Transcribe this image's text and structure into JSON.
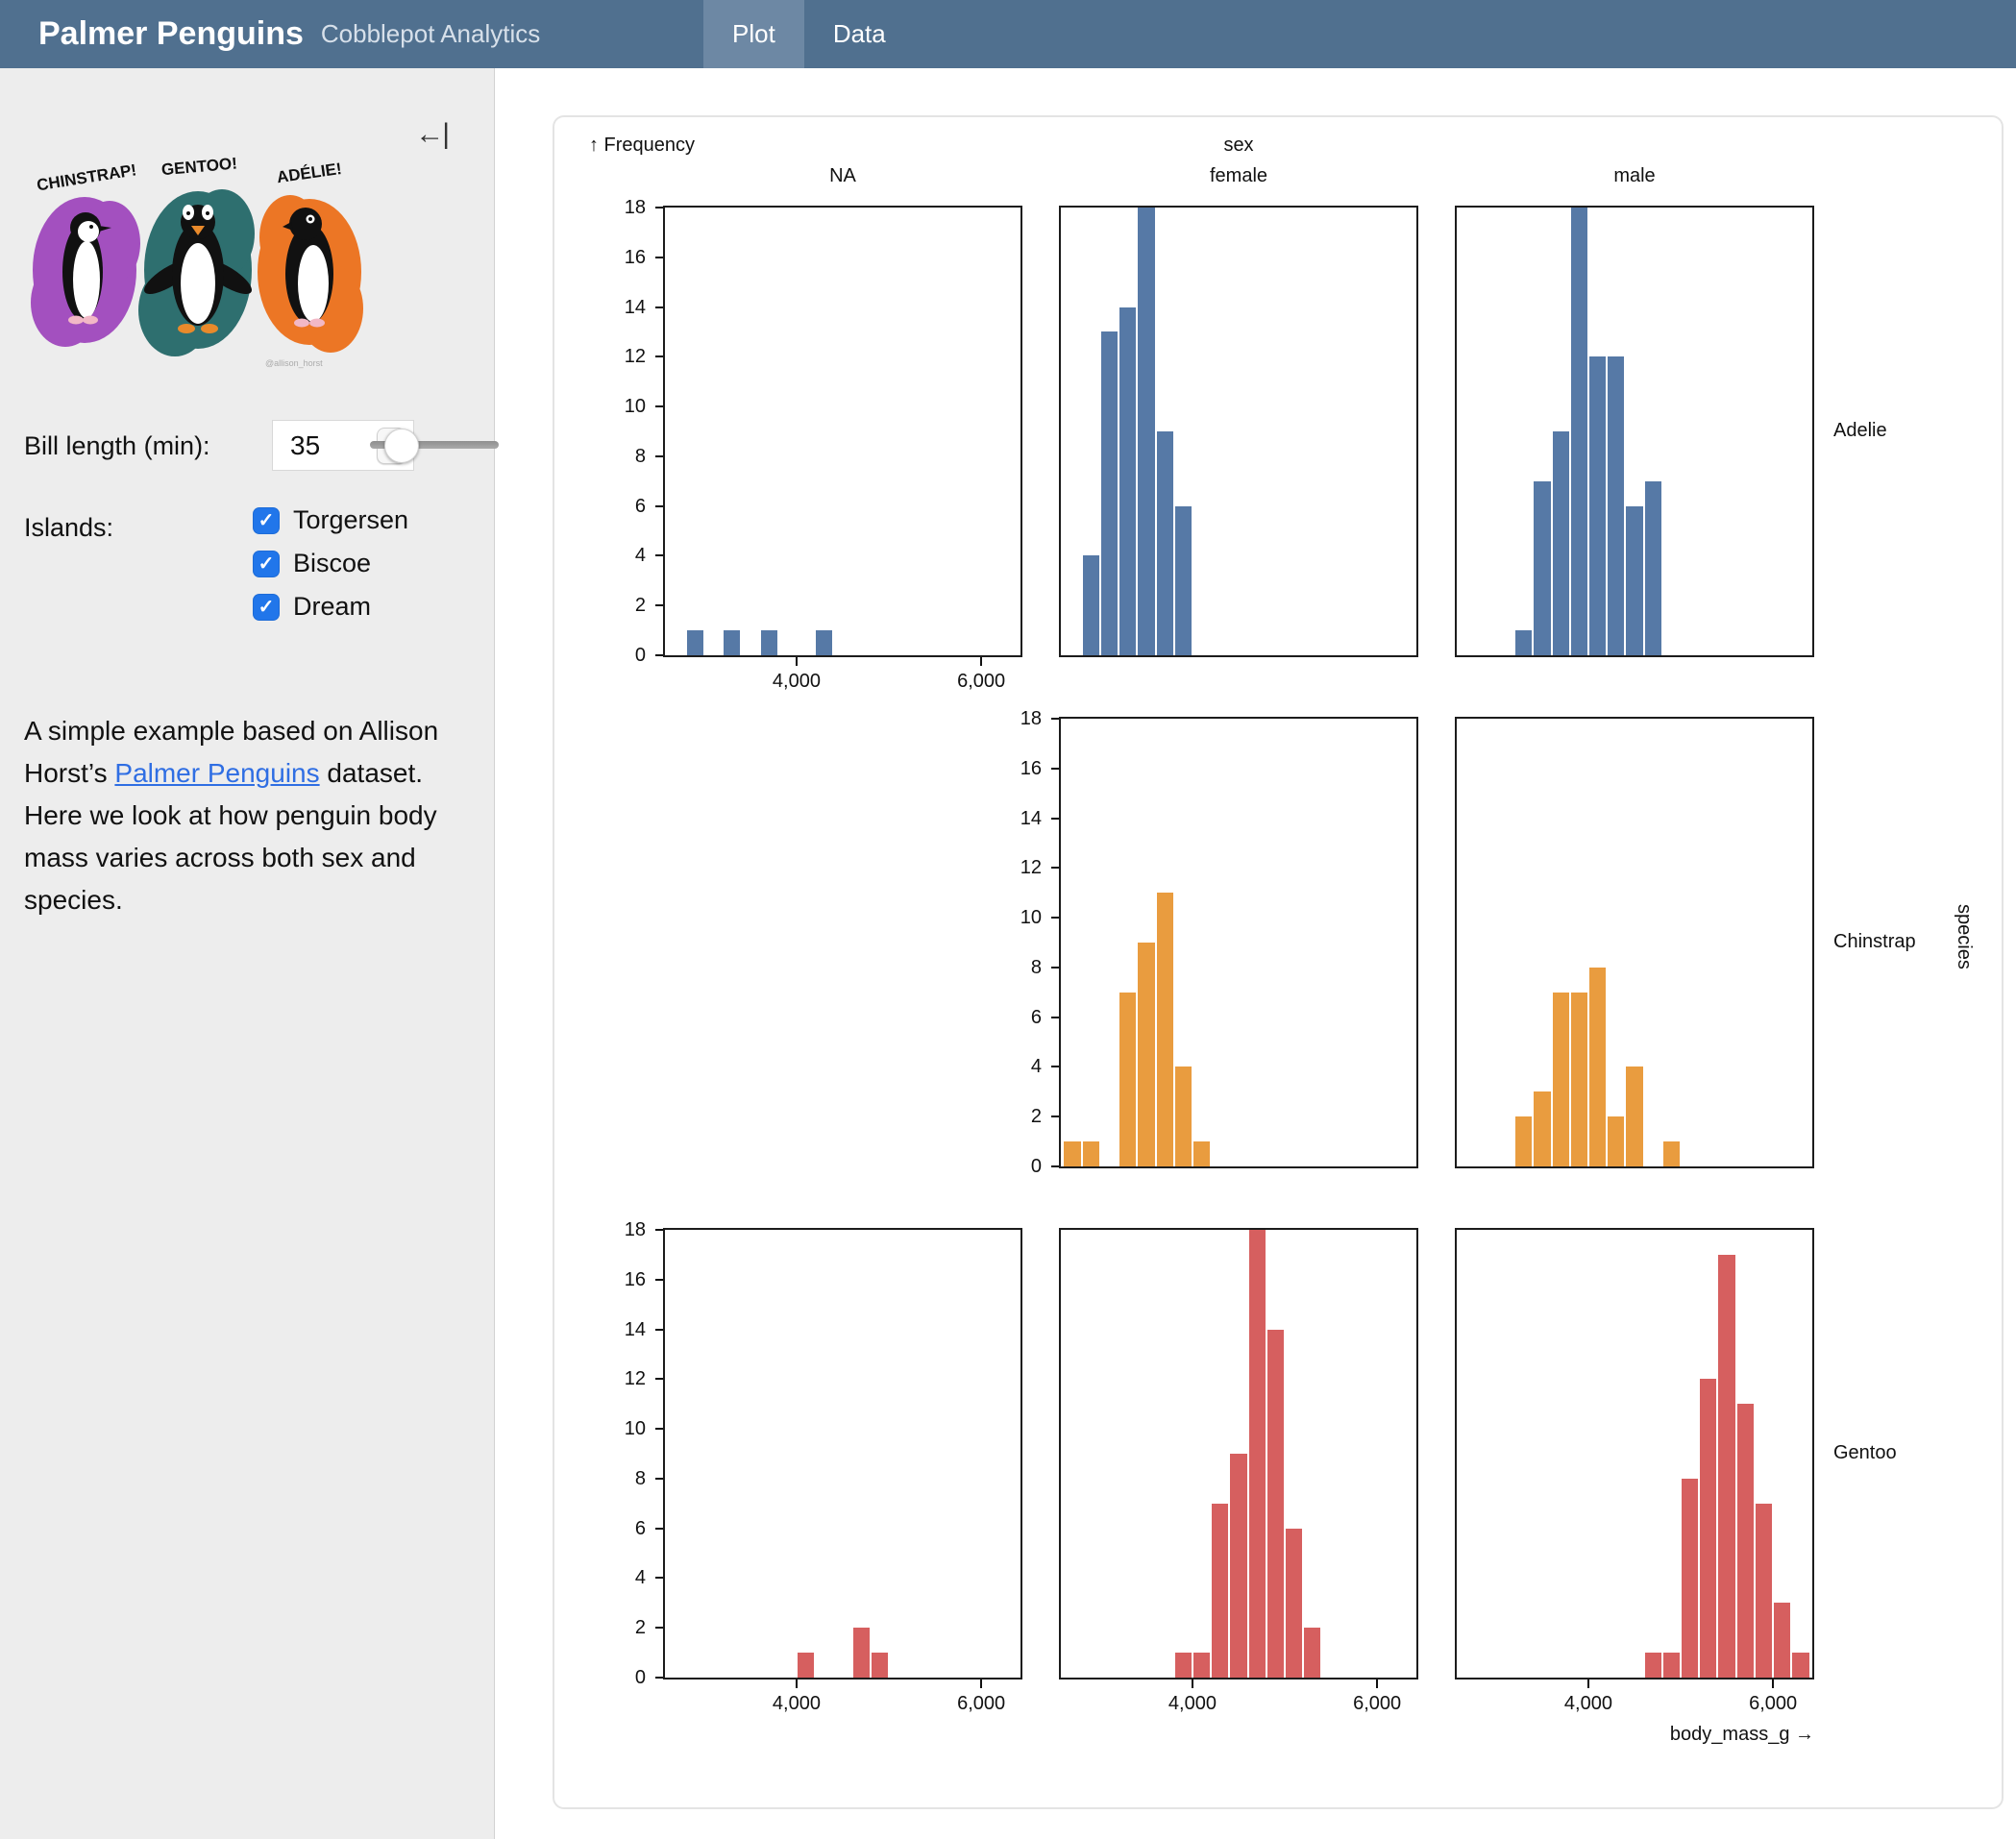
{
  "header": {
    "title": "Palmer Penguins",
    "subtitle": "Cobblepot Analytics",
    "tabs": [
      {
        "label": "Plot",
        "active": true
      },
      {
        "label": "Data",
        "active": false
      }
    ]
  },
  "sidebar": {
    "collapse_icon": "←|",
    "artwork": {
      "labels": [
        "CHINSTRAP!",
        "GENTOO!",
        "ADÉLIE!"
      ],
      "credit": "@allison_horst",
      "splash_colors": [
        "#a350bf",
        "#2e6f6f",
        "#ec7625"
      ]
    },
    "bill_length": {
      "label": "Bill length (min):",
      "value": "35"
    },
    "islands": {
      "label": "Islands:",
      "options": [
        {
          "label": "Torgersen",
          "checked": true
        },
        {
          "label": "Biscoe",
          "checked": true
        },
        {
          "label": "Dream",
          "checked": true
        }
      ]
    },
    "description": {
      "before": "A simple example based on Allison Horst’s ",
      "link": "Palmer Penguins",
      "after": " dataset. Here we look at how penguin body mass varies across both sex and species."
    }
  },
  "chart_data": {
    "type": "bar",
    "subtype": "faceted-histogram",
    "y_label": "↑ Frequency",
    "x_axis_label": "body_mass_g →",
    "fx_title": "sex",
    "fy_title": "species",
    "columns": [
      "NA",
      "female",
      "male"
    ],
    "rows": [
      "Adelie",
      "Chinstrap",
      "Gentoo"
    ],
    "x_domain": [
      2575,
      6425
    ],
    "y_domain": [
      0,
      18
    ],
    "bin_width": 200,
    "x_ticks": [
      {
        "value": 4000,
        "label": "4,000"
      },
      {
        "value": 6000,
        "label": "6,000"
      }
    ],
    "y_tick_step": 2,
    "grid": false,
    "species_colors": {
      "Adelie": "#5679a6",
      "Chinstrap": "#e99c3f",
      "Gentoo": "#d65f5f"
    },
    "facets": [
      {
        "row": "Adelie",
        "col": "NA",
        "bins": [
          [
            2800,
            1
          ],
          [
            3200,
            1
          ],
          [
            3600,
            1
          ],
          [
            4200,
            1
          ]
        ]
      },
      {
        "row": "Adelie",
        "col": "female",
        "bins": [
          [
            2800,
            4
          ],
          [
            3000,
            13
          ],
          [
            3200,
            14
          ],
          [
            3400,
            18
          ],
          [
            3600,
            9
          ],
          [
            3800,
            6
          ]
        ]
      },
      {
        "row": "Adelie",
        "col": "male",
        "bins": [
          [
            3200,
            1
          ],
          [
            3400,
            7
          ],
          [
            3600,
            9
          ],
          [
            3800,
            18
          ],
          [
            4000,
            12
          ],
          [
            4200,
            12
          ],
          [
            4400,
            6
          ],
          [
            4600,
            7
          ]
        ]
      },
      {
        "row": "Chinstrap",
        "col": "female",
        "bins": [
          [
            2600,
            1
          ],
          [
            2800,
            1
          ],
          [
            3200,
            7
          ],
          [
            3400,
            9
          ],
          [
            3600,
            11
          ],
          [
            3800,
            4
          ],
          [
            4000,
            1
          ]
        ]
      },
      {
        "row": "Chinstrap",
        "col": "male",
        "bins": [
          [
            3200,
            2
          ],
          [
            3400,
            3
          ],
          [
            3600,
            7
          ],
          [
            3800,
            7
          ],
          [
            4000,
            8
          ],
          [
            4200,
            2
          ],
          [
            4400,
            4
          ],
          [
            4800,
            1
          ]
        ]
      },
      {
        "row": "Gentoo",
        "col": "NA",
        "bins": [
          [
            4000,
            1
          ],
          [
            4600,
            2
          ],
          [
            4800,
            1
          ]
        ]
      },
      {
        "row": "Gentoo",
        "col": "female",
        "bins": [
          [
            3800,
            1
          ],
          [
            4000,
            1
          ],
          [
            4200,
            7
          ],
          [
            4400,
            9
          ],
          [
            4600,
            18
          ],
          [
            4800,
            14
          ],
          [
            5000,
            6
          ],
          [
            5200,
            2
          ]
        ]
      },
      {
        "row": "Gentoo",
        "col": "male",
        "bins": [
          [
            4600,
            1
          ],
          [
            4800,
            1
          ],
          [
            5000,
            8
          ],
          [
            5200,
            12
          ],
          [
            5400,
            17
          ],
          [
            5600,
            11
          ],
          [
            5800,
            7
          ],
          [
            6000,
            3
          ],
          [
            6200,
            1
          ]
        ]
      }
    ]
  }
}
